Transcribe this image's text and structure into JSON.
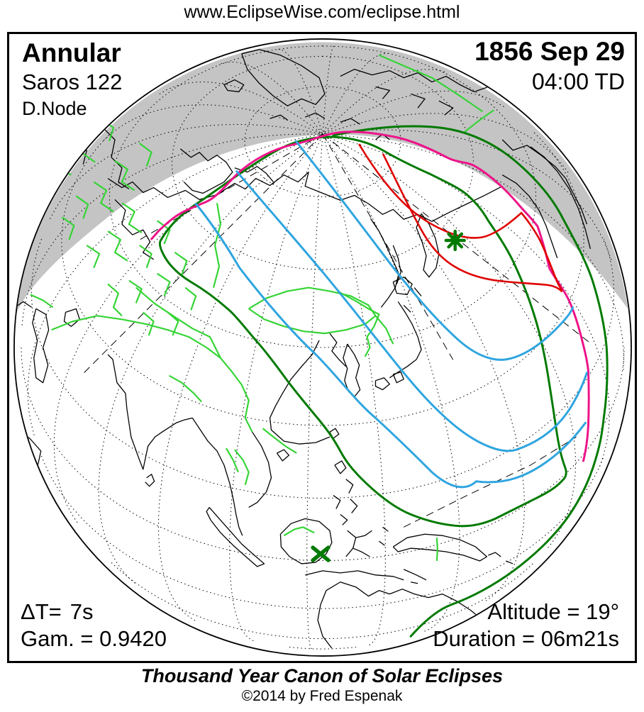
{
  "page": {
    "url_text": "www.EclipseWise.com/eclipse.html"
  },
  "header": {
    "eclipse_type": "Annular",
    "saros": "Saros 122",
    "node": "D.Node",
    "date": "1856 Sep 29",
    "time": "04:00 TD"
  },
  "stats": {
    "delta_t_label": "ΔT=",
    "delta_t_value": "7s",
    "gamma": "Gam. = 0.9420",
    "altitude": "Altitude = 19°",
    "duration": "Duration = 06m21s"
  },
  "caption": {
    "title": "Thousand Year Canon of Solar Eclipses",
    "copyright": "©2014 by Fred Espenak"
  },
  "map": {
    "projection": "globe view centered on Asia",
    "colors": {
      "night_shade": "#C4C4C4",
      "ocean": "#FFFFFF",
      "coastline": "#000000",
      "country_border": "#35D435",
      "penumbra_limit_green": "#007A00",
      "sunrise_sunset_magenta": "#EE1289",
      "max_eclipse_red": "#DF0000",
      "magnitude_blue": "#2FA5DF",
      "graticule": "#000000",
      "frame": "#000000"
    },
    "markers": {
      "greatest_eclipse": "green asterisk (point of greatest eclipse)",
      "subsolar_point": "green X (sub-solar point)"
    }
  }
}
